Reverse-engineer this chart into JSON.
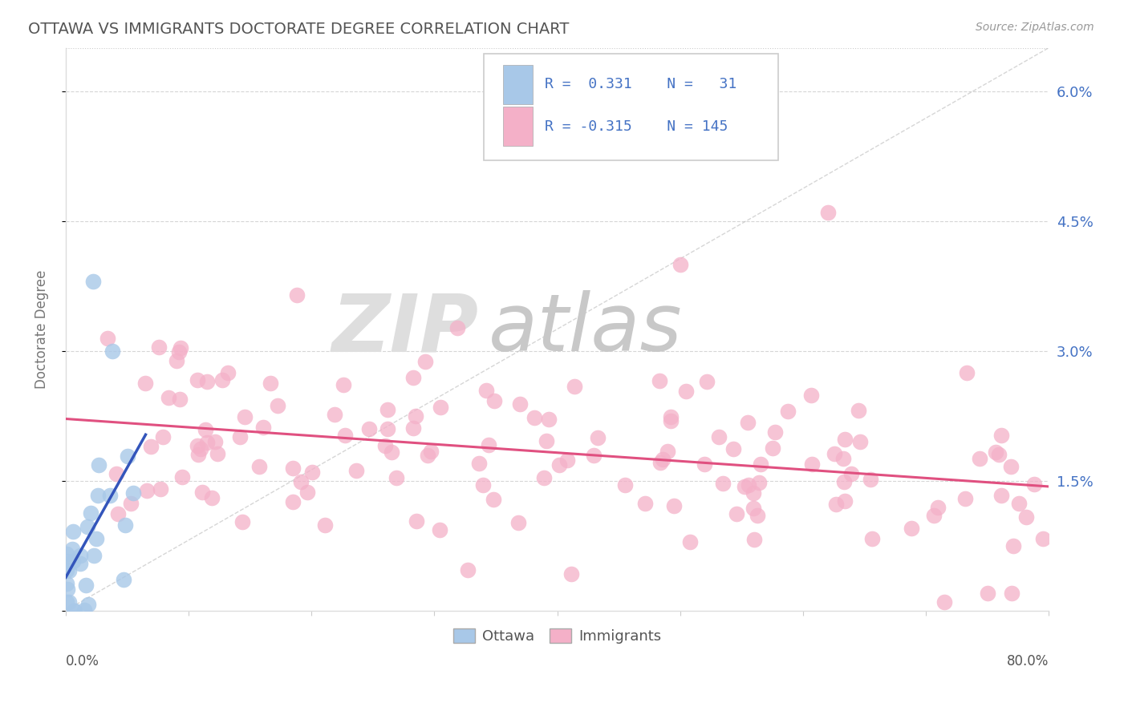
{
  "title": "OTTAWA VS IMMIGRANTS DOCTORATE DEGREE CORRELATION CHART",
  "source_text": "Source: ZipAtlas.com",
  "ylabel": "Doctorate Degree",
  "yaxis_ticks": [
    0.0,
    0.015,
    0.03,
    0.045,
    0.06
  ],
  "yaxis_labels": [
    "",
    "1.5%",
    "3.0%",
    "4.5%",
    "6.0%"
  ],
  "xaxis_range": [
    0.0,
    0.8
  ],
  "yaxis_range": [
    0.0,
    0.065
  ],
  "watermark_top": "ZIP",
  "watermark_bottom": "atlas",
  "ottawa_color": "#a8c8e8",
  "immigrants_color": "#f4b0c8",
  "ottawa_line_color": "#3355bb",
  "immigrants_line_color": "#e05080",
  "ref_line_color": "#bbbbbb",
  "background_color": "#ffffff",
  "title_color": "#555555",
  "legend_text_color": "#4472c4",
  "grid_color": "#cccccc",
  "ottawa_r": 0.331,
  "ottawa_n": 31,
  "immigrants_r": -0.315,
  "immigrants_n": 145,
  "ottawa_seed": 12,
  "immigrants_seed": 7
}
